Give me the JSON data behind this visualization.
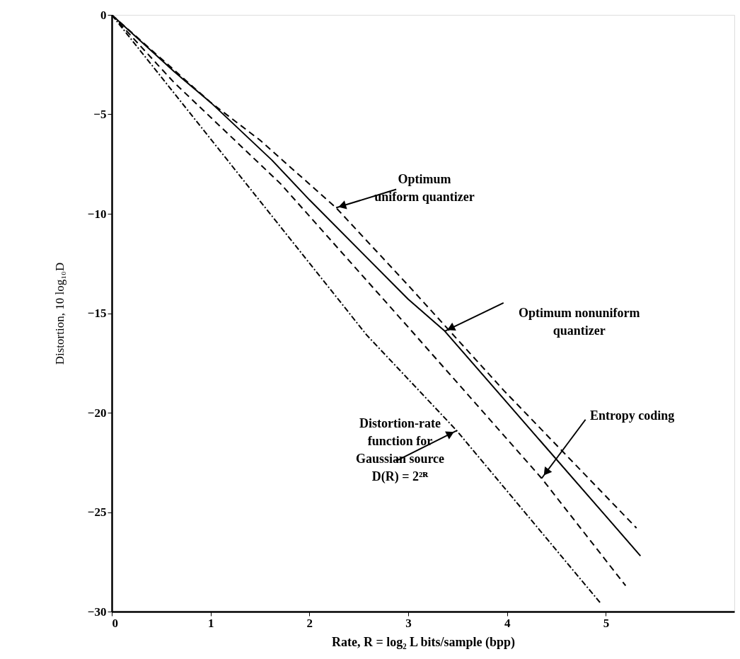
{
  "chart_data": {
    "type": "line",
    "xlabel": "Rate, R = log₂ L  bits/sample (bpp)",
    "ylabel": "Distortion, 10 log₁₀D",
    "xlim": [
      0,
      6.3
    ],
    "ylim": [
      -30,
      0
    ],
    "xticks": [
      0,
      1,
      2,
      3,
      4,
      5
    ],
    "yticks": [
      0,
      -5,
      -10,
      -15,
      -20,
      -25,
      -30
    ],
    "grid": false,
    "marker": "none",
    "series": [
      {
        "color": "#000000",
        "line_style": "dashed",
        "x": [
          0,
          1,
          1.5,
          2.27,
          3,
          3.97,
          5.31
        ],
        "values": [
          0,
          -4.4,
          -6.3,
          -9.7,
          -13.6,
          -18.9,
          -25.8
        ]
      },
      {
        "color": "#000000",
        "line_style": "solid",
        "x": [
          0,
          0.63,
          1,
          1.62,
          2,
          3,
          3.37,
          4,
          5,
          5.35
        ],
        "values": [
          0,
          -2.85,
          -4.4,
          -7.3,
          -9.3,
          -14.3,
          -15.9,
          -19.5,
          -25.2,
          -27.2
        ]
      },
      {
        "color": "#000000",
        "line_style": "dashed",
        "x": [
          0,
          0.63,
          1.71,
          3,
          4.35,
          5.2
        ],
        "values": [
          0,
          -3.4,
          -8.5,
          -15.7,
          -23.3,
          -28.7
        ]
      },
      {
        "color": "#000000",
        "line_style": "dashdot",
        "x": [
          0,
          2.58,
          3.49,
          4.95
        ],
        "values": [
          0,
          -16.1,
          -20.9,
          -29.6
        ]
      }
    ],
    "annotations": [
      {
        "text": "Optimum\nuniform quantizer",
        "x": 2.27,
        "y": -9.7
      },
      {
        "text": "Optimum nonuniform\nquantizer",
        "x": 3.37,
        "y": -15.9
      },
      {
        "text": "Entropy coding",
        "x": 4.35,
        "y": -23.3
      },
      {
        "text": "Distortion-rate\nfunction for\nGaussian source\nD(R) = 2²ᴿ",
        "x": 3.49,
        "y": -20.9
      }
    ]
  }
}
